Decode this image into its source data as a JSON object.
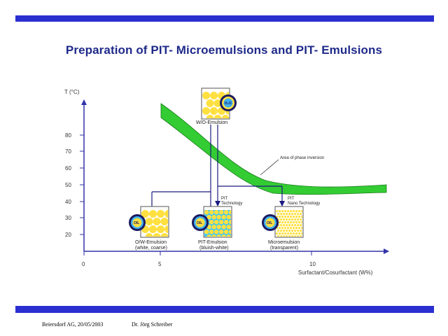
{
  "title": {
    "part1": "Preparation of PIT",
    "sep1": "- ",
    "part2": "Microemulsions and PIT",
    "sep2": "- ",
    "part3": "Emulsions"
  },
  "axes": {
    "y_label": "T (°C)",
    "y_ticks": [
      "80",
      "70",
      "60",
      "50",
      "40",
      "30",
      "20"
    ],
    "x_ticks": [
      "0",
      "5",
      "10"
    ],
    "x_label": "Surfactant/Cosurfactant (W%)"
  },
  "annotations": {
    "phase_inversion": "Area of phase inversion",
    "pit_tech_1": "PIT",
    "pit_tech_2": "Technology",
    "pit_nano_1": "PIT",
    "pit_nano_2": "Nano Technology"
  },
  "beakers": {
    "wo": {
      "label": "W/O-Emulsion",
      "oil": "H₂O"
    },
    "ow": {
      "label1": "O/W-Emulsion",
      "label2": "(white, coarse)",
      "oil": "OIL"
    },
    "pit": {
      "label1": "PIT-Emulsion",
      "label2": "(bluish-white)",
      "oil": "OIL"
    },
    "micro": {
      "label1": "Microemulsion",
      "label2": "(transparent)",
      "oil": "OIL"
    }
  },
  "footer": {
    "left": "Beiersdorf AG, 20/05/2003",
    "right": "Dr. Jörg Schreiber"
  },
  "colors": {
    "bar": "#2a2fd0",
    "title": "#1f2a8a",
    "axis": "#3333aa",
    "band": "#33cc33",
    "yellow": "#ffe040",
    "cyan": "#40c8f0"
  }
}
